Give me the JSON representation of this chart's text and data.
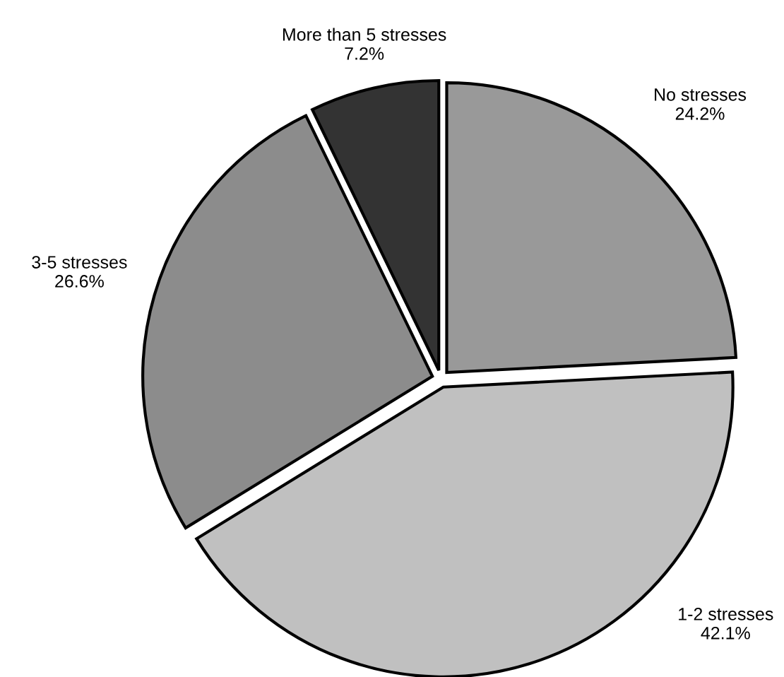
{
  "chart_data": {
    "type": "pie",
    "categories": [
      "No stresses",
      "1-2 stresses",
      "3-5 stresses",
      "More than 5 stresses"
    ],
    "values": [
      24.2,
      42.1,
      26.6,
      7.2
    ],
    "value_labels": [
      "24.2%",
      "42.1%",
      "26.6%",
      "7.2%"
    ],
    "colors": [
      "#999999",
      "#c0c0c0",
      "#8c8c8c",
      "#333333"
    ],
    "legend": false
  }
}
